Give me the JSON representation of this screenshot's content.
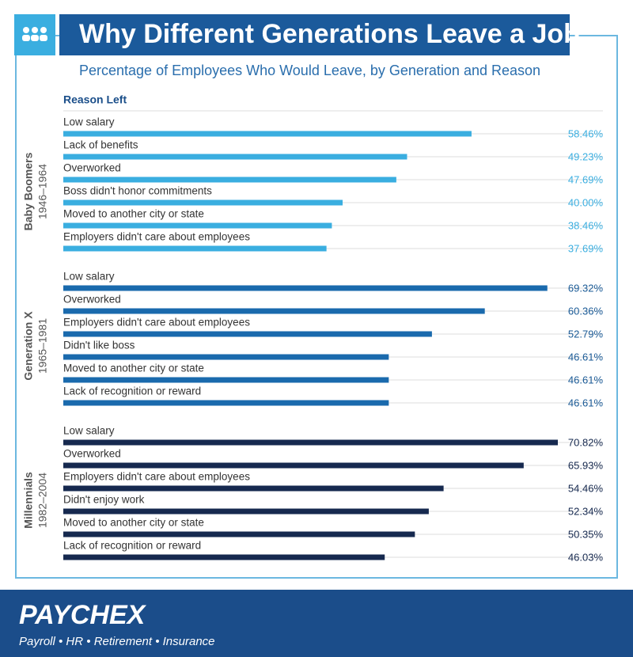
{
  "chart_data": {
    "type": "grouped-hbar",
    "title": "Why Different Generations Leave a Job",
    "subtitle": "Percentage of Employees Who Would Leave, by Generation and Reason",
    "axis_label": "Reason Left",
    "groups": [
      {
        "name": "Baby Boomers",
        "years": "1946–1964",
        "color": "#3aaee0",
        "label_color": "#3aaee0",
        "categories": [
          "Low salary",
          "Lack of benefits",
          "Overworked",
          "Boss didn't honor commitments",
          "Moved to another city or state",
          "Employers didn't care about employees"
        ],
        "values": [
          58.46,
          49.23,
          47.69,
          40.0,
          38.46,
          37.69
        ],
        "value_labels": [
          "58.46%",
          "49.23%",
          "47.69%",
          "40.00%",
          "38.46%",
          "37.69%"
        ]
      },
      {
        "name": "Generation X",
        "years": "1965–1981",
        "color": "#1a6aad",
        "label_color": "#1a5a96",
        "categories": [
          "Low salary",
          "Overworked",
          "Employers didn't care about employees",
          "Didn't like boss",
          "Moved to another city or state",
          "Lack of recognition or reward"
        ],
        "values": [
          69.32,
          60.36,
          52.79,
          46.61,
          46.61,
          46.61
        ],
        "value_labels": [
          "69.32%",
          "60.36%",
          "52.79%",
          "46.61%",
          "46.61%",
          "46.61%"
        ]
      },
      {
        "name": "Millennials",
        "years": "1982–2004",
        "color": "#16294f",
        "label_color": "#16294f",
        "categories": [
          "Low salary",
          "Overworked",
          "Employers didn't care about employees",
          "Didn't enjoy work",
          "Moved to another city or state",
          "Lack of recognition or reward"
        ],
        "values": [
          70.82,
          65.93,
          54.46,
          52.34,
          50.35,
          46.03
        ],
        "value_labels": [
          "70.82%",
          "65.93%",
          "54.46%",
          "52.34%",
          "50.35%",
          "46.03%"
        ]
      }
    ]
  },
  "footer": {
    "brand": "PAYCHEX",
    "tagline": "Payroll • HR • Retirement • Insurance"
  }
}
